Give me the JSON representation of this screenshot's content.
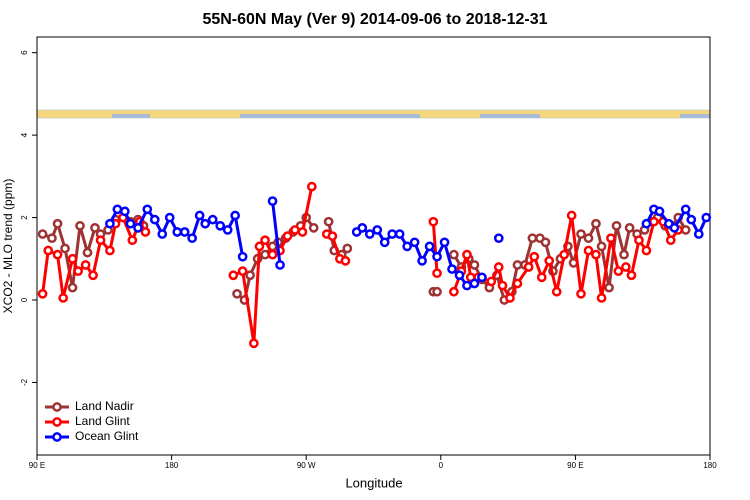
{
  "chart_data": {
    "type": "line",
    "title": "55N-60N May (Ver 9)   2014-09-06 to 2018-12-31",
    "x_label": "Longitude",
    "y_label": "XCO2 - MLO trend (ppm)",
    "xlim": [
      90,
      450
    ],
    "xticks": [
      {
        "value": 90,
        "label": "90 E"
      },
      {
        "value": 162,
        "label": "180"
      },
      {
        "value": 234,
        "label": "90 W"
      },
      {
        "value": 306,
        "label": "0"
      },
      {
        "value": 378,
        "label": "90 E"
      },
      {
        "value": 450,
        "label": "180"
      }
    ],
    "ylim": [
      -3.76,
      6.38
    ],
    "yticks": [
      -2,
      0,
      2,
      4,
      6
    ],
    "legend": "bottom-left",
    "series": [
      {
        "name": "Land Nadir",
        "color": "#9e3333",
        "x": [
          93,
          98,
          101,
          105,
          109,
          113,
          117,
          121,
          124,
          128,
          132,
          136,
          140,
          144,
          147,
          null,
          197,
          201,
          204,
          208,
          212,
          216,
          219,
          223,
          227,
          231,
          234,
          238,
          null,
          246,
          249,
          253,
          256,
          null,
          302,
          304,
          null,
          313,
          317,
          321,
          324,
          328,
          332,
          336,
          340,
          344,
          347,
          351,
          355,
          359,
          362,
          366,
          370,
          374,
          377,
          381,
          385,
          389,
          392,
          396,
          400,
          404,
          407,
          411,
          415,
          419,
          422,
          426,
          430,
          433,
          437
        ],
        "values": [
          1.6,
          1.5,
          1.85,
          1.25,
          0.3,
          1.8,
          1.15,
          1.75,
          1.6,
          1.7,
          1.95,
          2.0,
          1.9,
          1.95,
          1.8,
          null,
          0.15,
          0.0,
          0.6,
          1.0,
          1.1,
          1.3,
          1.4,
          1.5,
          1.65,
          1.8,
          2.0,
          1.75,
          null,
          1.9,
          1.2,
          1.1,
          1.25,
          null,
          0.2,
          0.2,
          null,
          1.1,
          0.8,
          1.0,
          0.85,
          0.5,
          0.3,
          0.6,
          0.0,
          0.2,
          0.85,
          0.85,
          1.5,
          1.5,
          1.4,
          0.7,
          1.0,
          1.3,
          0.9,
          1.6,
          1.5,
          1.85,
          1.3,
          0.3,
          1.8,
          1.1,
          1.75,
          1.6,
          1.7,
          1.9,
          2.0,
          1.8,
          1.8,
          2.0,
          1.7
        ]
      },
      {
        "name": "Land Glint",
        "color": "#ff0000",
        "x": [
          93,
          96,
          101,
          104,
          109,
          112,
          116,
          120,
          124,
          129,
          132,
          136,
          141,
          145,
          148,
          null,
          195,
          200,
          206,
          209,
          212,
          216,
          220,
          224,
          228,
          232,
          237,
          null,
          245,
          248,
          252,
          255,
          null,
          302,
          304,
          null,
          313,
          317,
          320,
          322,
          326,
          333,
          337,
          339,
          343,
          347,
          353,
          356,
          360,
          364,
          368,
          372,
          376,
          381,
          385,
          389,
          392,
          397,
          401,
          405,
          408,
          412,
          416,
          420,
          425,
          429,
          433
        ],
        "values": [
          0.15,
          1.2,
          1.1,
          0.05,
          1.0,
          0.7,
          0.85,
          0.6,
          1.45,
          1.2,
          1.85,
          2.0,
          1.45,
          1.9,
          1.65,
          null,
          0.6,
          0.7,
          -1.05,
          1.3,
          1.45,
          1.1,
          1.2,
          1.55,
          1.7,
          1.65,
          2.75,
          null,
          1.6,
          1.55,
          1.0,
          0.95,
          null,
          1.9,
          0.65,
          null,
          0.2,
          0.7,
          1.1,
          0.55,
          0.55,
          0.45,
          0.8,
          0.35,
          0.05,
          0.4,
          0.8,
          1.05,
          0.55,
          0.95,
          0.2,
          1.1,
          2.05,
          0.15,
          1.2,
          1.1,
          0.05,
          1.5,
          0.7,
          0.8,
          0.6,
          1.45,
          1.2,
          1.9,
          1.9,
          1.45,
          1.7
        ]
      },
      {
        "name": "Ocean Glint",
        "color": "#0000ff",
        "x": [
          129,
          133,
          137,
          140,
          144,
          149,
          153,
          157,
          161,
          165,
          169,
          173,
          177,
          180,
          184,
          188,
          192,
          196,
          200,
          null,
          216,
          220,
          null,
          261,
          264,
          268,
          272,
          276,
          280,
          284,
          288,
          292,
          296,
          300,
          304,
          308,
          312,
          316,
          320,
          324,
          328,
          null,
          337,
          null,
          416,
          420,
          423,
          428,
          431,
          437,
          440,
          444,
          448
        ],
        "values": [
          1.85,
          2.2,
          2.15,
          1.85,
          1.75,
          2.2,
          1.95,
          1.6,
          2.0,
          1.65,
          1.65,
          1.5,
          2.05,
          1.85,
          1.95,
          1.8,
          1.7,
          2.05,
          1.05,
          null,
          2.4,
          0.85,
          null,
          1.65,
          1.75,
          1.6,
          1.7,
          1.4,
          1.6,
          1.6,
          1.3,
          1.4,
          0.95,
          1.3,
          1.05,
          1.4,
          0.75,
          0.6,
          0.35,
          0.4,
          0.55,
          null,
          1.5,
          null,
          1.85,
          2.2,
          2.15,
          1.85,
          1.75,
          2.2,
          1.95,
          1.6,
          2.0
        ]
      }
    ]
  }
}
